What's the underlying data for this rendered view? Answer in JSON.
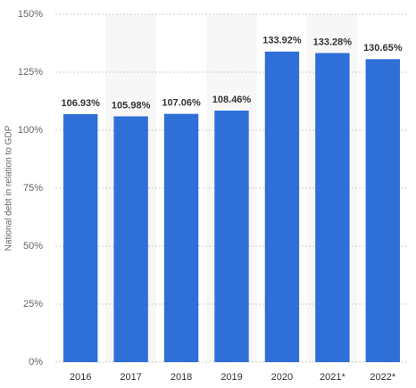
{
  "chart_data": {
    "type": "bar",
    "y_label": "National debt in relation to GDP",
    "categories": [
      "2016",
      "2017",
      "2018",
      "2019",
      "2020",
      "2021*",
      "2022*"
    ],
    "values": [
      106.93,
      105.98,
      107.06,
      108.46,
      133.92,
      133.28,
      130.65
    ],
    "value_labels": [
      "106.93%",
      "105.98%",
      "107.06%",
      "108.46%",
      "133.92%",
      "133.28%",
      "130.65%"
    ],
    "color": "#2f6fd8",
    "ylim": [
      0,
      150
    ],
    "yticks": [
      {
        "value": 0,
        "label": "0%"
      },
      {
        "value": 25,
        "label": "25%"
      },
      {
        "value": 50,
        "label": "50%"
      },
      {
        "value": 75,
        "label": "75%"
      },
      {
        "value": 100,
        "label": "100%"
      },
      {
        "value": 125,
        "label": "125%"
      },
      {
        "value": 150,
        "label": "150%"
      }
    ],
    "grid": true
  }
}
